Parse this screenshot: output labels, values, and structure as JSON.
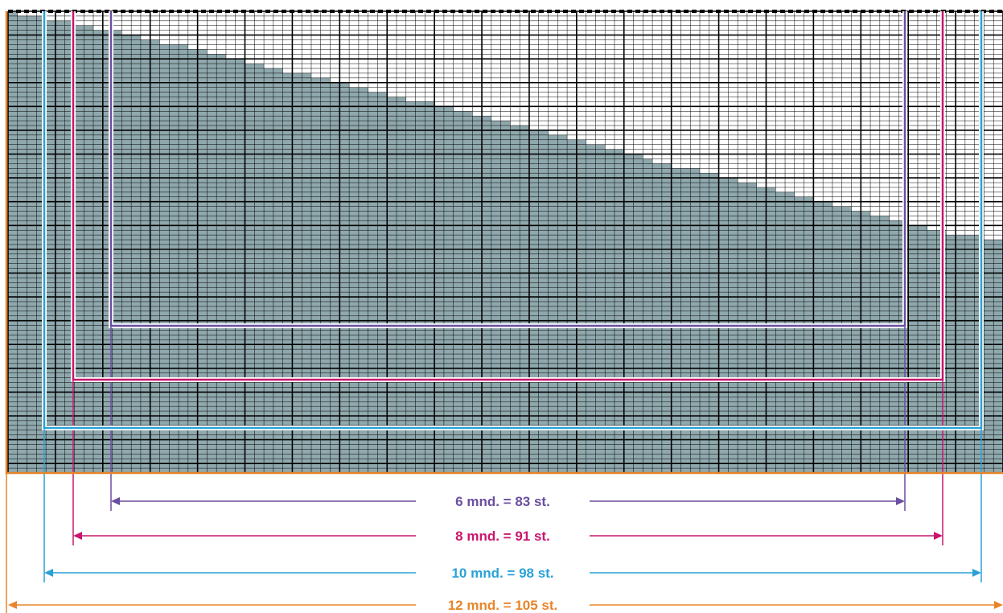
{
  "diagram": {
    "grid": {
      "stitch_columns": 105,
      "fill_color": "#8fa8ad",
      "fine_line_color": "#000000",
      "major_line_color": "#000000",
      "top_edge": "dashed"
    },
    "sizes": [
      {
        "id": "6",
        "label": "6 mnd. = 83 st.",
        "stitches": 83,
        "color": "#6a4fa0"
      },
      {
        "id": "8",
        "label": "8 mnd. = 91 st.",
        "stitches": 91,
        "color": "#c8176e"
      },
      {
        "id": "10",
        "label": "10 mnd. = 98 st.",
        "stitches": 98,
        "color": "#2aa2d6"
      },
      {
        "id": "12",
        "label": "12 mnd. = 105 st.",
        "stitches": 105,
        "color": "#e8852a"
      }
    ]
  }
}
